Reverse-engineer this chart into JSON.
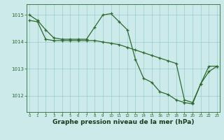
{
  "line1": {
    "x": [
      0,
      1,
      2,
      3,
      4,
      5,
      6,
      7,
      8,
      9,
      10,
      11,
      12,
      13,
      14,
      15,
      16,
      17,
      18,
      19,
      20,
      21,
      22,
      23
    ],
    "y": [
      1015.0,
      1014.8,
      1014.45,
      1014.15,
      1014.1,
      1014.1,
      1014.1,
      1014.1,
      1014.55,
      1015.0,
      1015.05,
      1014.75,
      1014.45,
      1013.35,
      1012.65,
      1012.5,
      1012.15,
      1012.05,
      1011.85,
      1011.75,
      1011.7,
      1012.45,
      1012.9,
      1013.1
    ]
  },
  "line2": {
    "x": [
      0,
      1,
      2,
      3,
      4,
      5,
      6,
      7,
      8,
      9,
      10,
      11,
      12,
      13,
      14,
      15,
      16,
      17,
      18,
      19,
      20,
      21,
      22,
      23
    ],
    "y": [
      1014.8,
      1014.75,
      1014.1,
      1014.05,
      1014.05,
      1014.05,
      1014.05,
      1014.05,
      1014.05,
      1014.0,
      1013.95,
      1013.9,
      1013.8,
      1013.7,
      1013.6,
      1013.5,
      1013.4,
      1013.3,
      1013.2,
      1011.85,
      1011.75,
      1012.45,
      1013.1,
      1013.1
    ]
  },
  "line_color": "#2d6a2d",
  "marker": "+",
  "markersize": 3,
  "linewidth": 0.9,
  "background_color": "#cceaea",
  "grid_color": "#99cccc",
  "xlabel": "Graphe pression niveau de la mer (hPa)",
  "xlabel_fontsize": 6.5,
  "xlabel_color": "#1a3a1a",
  "yticks": [
    1012,
    1013,
    1014,
    1015
  ],
  "xticks": [
    0,
    1,
    2,
    3,
    4,
    5,
    6,
    7,
    8,
    9,
    10,
    11,
    12,
    13,
    14,
    15,
    16,
    17,
    18,
    19,
    20,
    21,
    22,
    23
  ],
  "xlim": [
    -0.3,
    23.3
  ],
  "ylim": [
    1011.4,
    1015.4
  ]
}
